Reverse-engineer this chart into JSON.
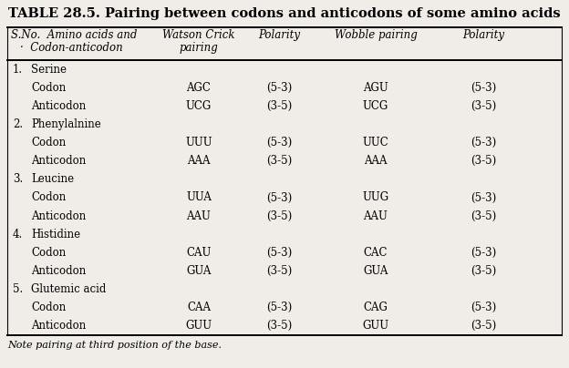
{
  "title": "TABLE 28.5. Pairing between codons and anticodons of some amino acids",
  "note": "Note pairing at third position of the base.",
  "header": [
    "S.No.  Amino acids and\n  ·  Codon-anticodon",
    "Watson Crick\npairing",
    "Polarity",
    "Wobble pairing",
    "Polarity"
  ],
  "rows": [
    {
      "label": "1.   Serine",
      "num": "1.",
      "name": "Serine",
      "type": "group"
    },
    {
      "label": "Codon",
      "wc": "AGC",
      "wc_pol": "(5-3)",
      "wb": "AGU",
      "wb_pol": "(5-3)",
      "type": "data"
    },
    {
      "label": "Anticodon",
      "wc": "UCG",
      "wc_pol": "(3-5)",
      "wb": "UCG",
      "wb_pol": "(3-5)",
      "type": "data"
    },
    {
      "label": "2.   Phenylalnine",
      "num": "2.",
      "name": "Phenylalnine",
      "type": "group"
    },
    {
      "label": "Codon",
      "wc": "UUU",
      "wc_pol": "(5-3)",
      "wb": "UUC",
      "wb_pol": "(5-3)",
      "type": "data"
    },
    {
      "label": "Anticodon",
      "wc": "AAA",
      "wc_pol": "(3-5)",
      "wb": "AAA",
      "wb_pol": "(3-5)",
      "type": "data"
    },
    {
      "label": "3.   Leucine",
      "num": "3.",
      "name": "Leucine",
      "type": "group"
    },
    {
      "label": "Codon",
      "wc": "UUA",
      "wc_pol": "(5-3)",
      "wb": "UUG",
      "wb_pol": "(5-3)",
      "type": "data"
    },
    {
      "label": "Anticodon",
      "wc": "AAU",
      "wc_pol": "(3-5)",
      "wb": "AAU",
      "wb_pol": "(3-5)",
      "type": "data"
    },
    {
      "label": "4.   Histidine",
      "num": "4.",
      "name": "Histidine",
      "type": "group"
    },
    {
      "label": "Codon",
      "wc": "CAU",
      "wc_pol": "(5-3)",
      "wb": "CAC",
      "wb_pol": "(5-3)",
      "type": "data"
    },
    {
      "label": "Anticodon",
      "wc": "GUA",
      "wc_pol": "(3-5)",
      "wb": "GUA",
      "wb_pol": "(3-5)",
      "type": "data"
    },
    {
      "label": "5.   Glutemic acid",
      "num": "5.",
      "name": "Glutemic acid",
      "type": "group"
    },
    {
      "label": "Codon",
      "wc": "CAA",
      "wc_pol": "(5-3)",
      "wb": "CAG",
      "wb_pol": "(5-3)",
      "type": "data"
    },
    {
      "label": "Anticodon",
      "wc": "GUU",
      "wc_pol": "(3-5)",
      "wb": "GUU",
      "wb_pol": "(3-5)",
      "type": "data"
    }
  ],
  "bg_color": "#f0ede8",
  "title_fontsize": 10.5,
  "header_fontsize": 8.5,
  "body_fontsize": 8.5,
  "note_fontsize": 8.0,
  "fig_width": 6.24,
  "fig_height": 4.04,
  "dpi": 100
}
